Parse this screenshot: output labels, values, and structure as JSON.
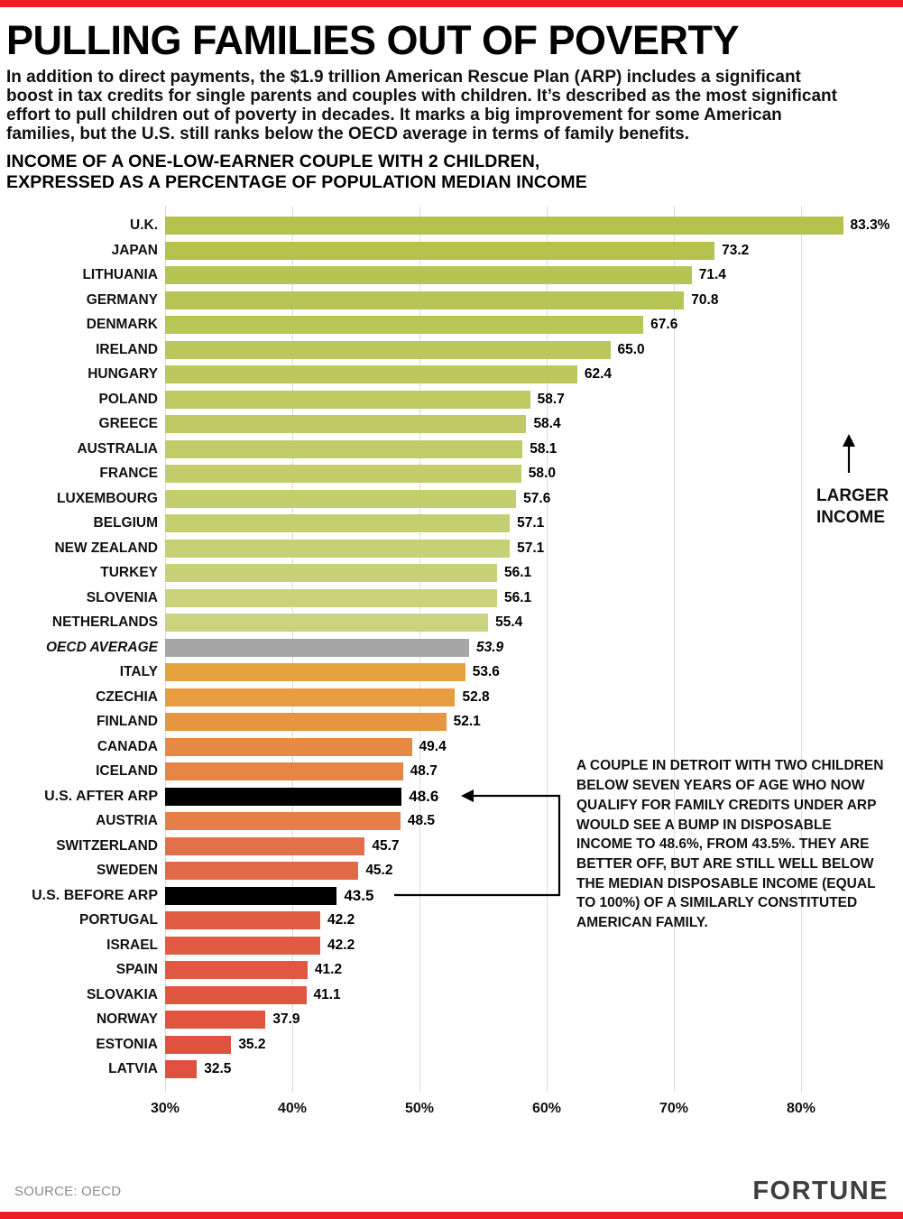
{
  "accent_color": "#ee1c25",
  "header": {
    "title": "PULLING FAMILIES OUT OF POVERTY",
    "intro": "In addition to direct payments, the $1.9 trillion American Rescue Plan (ARP) includes a significant boost in tax credits for single parents and couples with children. It’s described as the most significant effort to pull children out of poverty in decades. It marks a big improvement for some American families, but the U.S. still ranks below the OECD average in terms of family benefits.",
    "subtitle": "INCOME OF A ONE-LOW-EARNER COUPLE WITH 2 CHILDREN,\nEXPRESSED AS A PERCENTAGE OF POPULATION MEDIAN INCOME"
  },
  "chart_data": {
    "type": "bar",
    "orientation": "horizontal",
    "title": "Income of a one-low-earner couple with 2 children, expressed as a percentage of population median income",
    "xlim": [
      30,
      85
    ],
    "grid": true,
    "axis": {
      "ticks": [
        "30%",
        "40%",
        "50%",
        "60%",
        "70%",
        "80%"
      ],
      "tick_values": [
        30,
        40,
        50,
        60,
        70,
        80
      ]
    },
    "larger_income_label": "LARGER\nINCOME",
    "annotation": "A COUPLE IN DETROIT WITH TWO CHILDREN BELOW SEVEN YEARS OF AGE WHO NOW QUALIFY FOR FAMILY CREDITS UNDER ARP WOULD SEE A BUMP IN DISPOSABLE INCOME TO 48.6%, FROM 43.5%. THEY ARE BETTER OFF, BUT ARE STILL WELL BELOW THE MEDIAN DISPOSABLE INCOME (EQUAL TO 100%) OF A SIMILARLY CONSTITUTED AMERICAN FAMILY.",
    "rows": [
      {
        "label": "U.K.",
        "value": 83.3,
        "display": "83.3%",
        "color": "#b4c24b",
        "kind": "default"
      },
      {
        "label": "JAPAN",
        "value": 73.2,
        "display": "73.2",
        "color": "#b5c34e",
        "kind": "default"
      },
      {
        "label": "LITHUANIA",
        "value": 71.4,
        "display": "71.4",
        "color": "#b6c451",
        "kind": "default"
      },
      {
        "label": "GERMANY",
        "value": 70.8,
        "display": "70.8",
        "color": "#b8c554",
        "kind": "default"
      },
      {
        "label": "DENMARK",
        "value": 67.6,
        "display": "67.6",
        "color": "#b9c657",
        "kind": "default"
      },
      {
        "label": "IRELAND",
        "value": 65.0,
        "display": "65.0",
        "color": "#bbc75a",
        "kind": "default"
      },
      {
        "label": "HUNGARY",
        "value": 62.4,
        "display": "62.4",
        "color": "#bcc85d",
        "kind": "default"
      },
      {
        "label": "POLAND",
        "value": 58.7,
        "display": "58.7",
        "color": "#bec961",
        "kind": "default"
      },
      {
        "label": "GREECE",
        "value": 58.4,
        "display": "58.4",
        "color": "#bfca64",
        "kind": "default"
      },
      {
        "label": "AUSTRALIA",
        "value": 58.1,
        "display": "58.1",
        "color": "#c1cb67",
        "kind": "default"
      },
      {
        "label": "FRANCE",
        "value": 58.0,
        "display": "58.0",
        "color": "#c2cc6a",
        "kind": "default"
      },
      {
        "label": "LUXEMBOURG",
        "value": 57.6,
        "display": "57.6",
        "color": "#c4ce6e",
        "kind": "default"
      },
      {
        "label": "BELGIUM",
        "value": 57.1,
        "display": "57.1",
        "color": "#c5cf71",
        "kind": "default"
      },
      {
        "label": "NEW ZEALAND",
        "value": 57.1,
        "display": "57.1",
        "color": "#c7d074",
        "kind": "default"
      },
      {
        "label": "TURKEY",
        "value": 56.1,
        "display": "56.1",
        "color": "#c8d178",
        "kind": "default"
      },
      {
        "label": "SLOVENIA",
        "value": 56.1,
        "display": "56.1",
        "color": "#cad27b",
        "kind": "default"
      },
      {
        "label": "NETHERLANDS",
        "value": 55.4,
        "display": "55.4",
        "color": "#cbd37e",
        "kind": "default"
      },
      {
        "label": "OECD AVERAGE",
        "value": 53.9,
        "display": "53.9",
        "color": "#a6a6a6",
        "kind": "oecd"
      },
      {
        "label": "ITALY",
        "value": 53.6,
        "display": "53.6",
        "color": "#e8a23d",
        "kind": "default"
      },
      {
        "label": "CZECHIA",
        "value": 52.8,
        "display": "52.8",
        "color": "#e79c3f",
        "kind": "default"
      },
      {
        "label": "FINLAND",
        "value": 52.1,
        "display": "52.1",
        "color": "#e69641",
        "kind": "default"
      },
      {
        "label": "CANADA",
        "value": 49.4,
        "display": "49.4",
        "color": "#e68a45",
        "kind": "default"
      },
      {
        "label": "ICELAND",
        "value": 48.7,
        "display": "48.7",
        "color": "#e58546",
        "kind": "default"
      },
      {
        "label": "U.S. AFTER ARP",
        "value": 48.6,
        "display": "48.6",
        "color": "#000000",
        "kind": "us"
      },
      {
        "label": "AUSTRIA",
        "value": 48.5,
        "display": "48.5",
        "color": "#e57f47",
        "kind": "default"
      },
      {
        "label": "SWITZERLAND",
        "value": 45.7,
        "display": "45.7",
        "color": "#e3704a",
        "kind": "default"
      },
      {
        "label": "SWEDEN",
        "value": 45.2,
        "display": "45.2",
        "color": "#e2684a",
        "kind": "default"
      },
      {
        "label": "U.S. BEFORE ARP",
        "value": 43.5,
        "display": "43.5",
        "color": "#000000",
        "kind": "us"
      },
      {
        "label": "PORTUGAL",
        "value": 42.2,
        "display": "42.2",
        "color": "#e25c44",
        "kind": "default"
      },
      {
        "label": "ISRAEL",
        "value": 42.2,
        "display": "42.2",
        "color": "#e25a43",
        "kind": "default"
      },
      {
        "label": "SPAIN",
        "value": 41.2,
        "display": "41.2",
        "color": "#e15842",
        "kind": "default"
      },
      {
        "label": "SLOVAKIA",
        "value": 41.1,
        "display": "41.1",
        "color": "#e15641",
        "kind": "default"
      },
      {
        "label": "NORWAY",
        "value": 37.9,
        "display": "37.9",
        "color": "#e05440",
        "kind": "default"
      },
      {
        "label": "ESTONIA",
        "value": 35.2,
        "display": "35.2",
        "color": "#e0523f",
        "kind": "default"
      },
      {
        "label": "LATVIA",
        "value": 32.5,
        "display": "32.5",
        "color": "#df503e",
        "kind": "default"
      }
    ]
  },
  "footer": {
    "source": "SOURCE: OECD",
    "logo": "FORTUNE"
  }
}
